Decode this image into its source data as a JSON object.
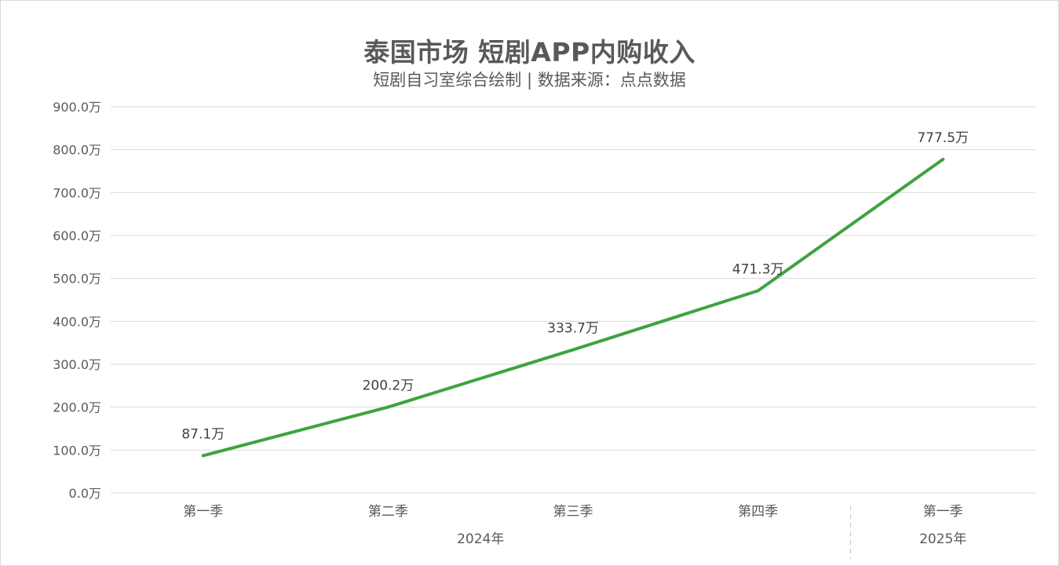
{
  "chart_data": {
    "type": "line",
    "title": "泰国市场 短剧APP内购收入",
    "subtitle": "短剧自习室综合绘制 | 数据来源：点点数据",
    "categories": [
      "第一季",
      "第二季",
      "第三季",
      "第四季",
      "第一季"
    ],
    "groups": [
      {
        "label": "2024年",
        "count": 4
      },
      {
        "label": "2025年",
        "count": 1
      }
    ],
    "series": [
      {
        "values": [
          87.1,
          200.2,
          333.7,
          471.3,
          777.5
        ],
        "data_labels": [
          "87.1万",
          "200.2万",
          "333.7万",
          "471.3万",
          "777.5万"
        ],
        "color": "#3FA33F"
      }
    ],
    "y_ticks": [
      "0.0万",
      "100.0万",
      "200.0万",
      "300.0万",
      "400.0万",
      "500.0万",
      "600.0万",
      "700.0万",
      "800.0万",
      "900.0万"
    ],
    "ylim": [
      0,
      900
    ],
    "unit": "万",
    "grid": true,
    "legend": "none",
    "colors": {
      "line": "#3FA33F",
      "grid": "#d9d9d9",
      "text": "#595959"
    }
  }
}
